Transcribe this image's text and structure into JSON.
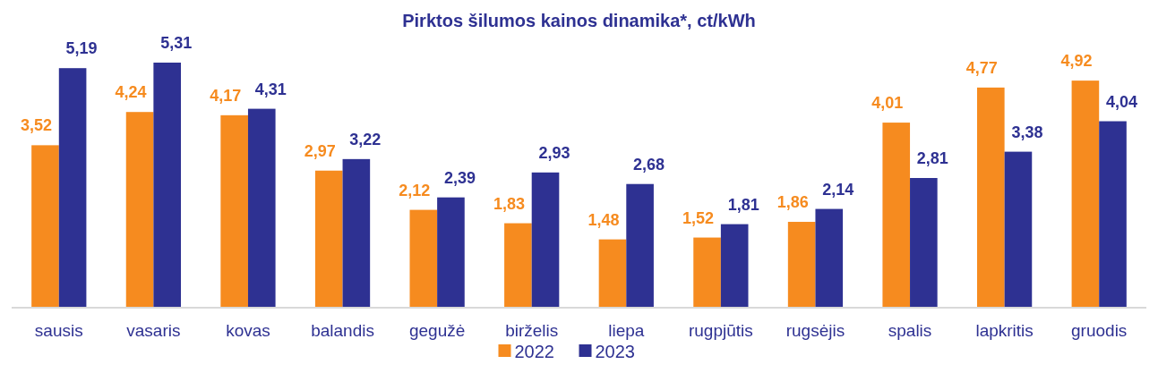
{
  "chart_data": {
    "type": "bar",
    "title": "Pirktos šilumos kainos dinamika*, ct/kWh",
    "categories": [
      "sausis",
      "vasaris",
      "kovas",
      "balandis",
      "gegužė",
      "birželis",
      "liepa",
      "rugpjūtis",
      "rugsėjis",
      "spalis",
      "lapkritis",
      "gruodis"
    ],
    "series": [
      {
        "name": "2022",
        "color": "#f68b1f",
        "values": [
          3.52,
          4.24,
          4.17,
          2.97,
          2.12,
          1.83,
          1.48,
          1.52,
          1.86,
          4.01,
          4.77,
          4.92
        ],
        "value_labels": [
          "3,52",
          "4,24",
          "4,17",
          "2,97",
          "2,12",
          "1,83",
          "1,48",
          "1,52",
          "1,86",
          "4,01",
          "4,77",
          "4,92"
        ]
      },
      {
        "name": "2023",
        "color": "#2e3192",
        "values": [
          5.19,
          5.31,
          4.31,
          3.22,
          2.39,
          2.93,
          2.68,
          1.81,
          2.14,
          2.81,
          3.38,
          4.04
        ],
        "value_labels": [
          "5,19",
          "5,31",
          "4,31",
          "3,22",
          "2,39",
          "2,93",
          "2,68",
          "1,81",
          "2,14",
          "2,81",
          "3,38",
          "4,04"
        ]
      }
    ],
    "legend": "bottom",
    "grid": false
  }
}
